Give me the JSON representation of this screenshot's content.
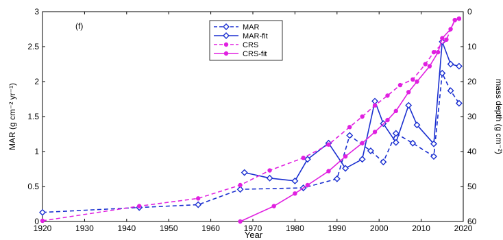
{
  "chart_data": {
    "type": "line",
    "panel_label": "(f)",
    "xlabel": "Year",
    "ylabel_left": "MAR (g cm⁻² yr⁻¹)",
    "ylabel_right": "mass depth (g cm⁻²)",
    "xlim": [
      1920,
      2020
    ],
    "ylim_left": [
      0,
      3
    ],
    "ylim_right": [
      0,
      60
    ],
    "right_axis_inverted": true,
    "x_ticks": [
      "1920",
      "1930",
      "1940",
      "1950",
      "1960",
      "1970",
      "1980",
      "1990",
      "2000",
      "2010",
      "2020"
    ],
    "y_ticks_left": [
      "0",
      "0.5",
      "1",
      "1.5",
      "2",
      "2.5",
      "3"
    ],
    "y_ticks_right": [
      "0",
      "10",
      "20",
      "30",
      "40",
      "50",
      "60"
    ],
    "legend_position": "top-center",
    "series": [
      {
        "name": "MAR",
        "color": "#1a2fd0",
        "line_style": "dashed",
        "marker": "diamond-open",
        "axis": "left",
        "x": [
          1920,
          1943,
          1957,
          1967,
          1982,
          1990,
          1993,
          1998,
          2001,
          2004,
          2008,
          2013,
          2015,
          2017,
          2019
        ],
        "y": [
          0.13,
          0.2,
          0.24,
          0.46,
          0.48,
          0.61,
          1.23,
          1.01,
          0.85,
          1.26,
          1.12,
          0.93,
          2.12,
          1.87,
          1.69
        ]
      },
      {
        "name": "MAR-fit",
        "color": "#1a2fd0",
        "line_style": "solid",
        "marker": "diamond-open",
        "axis": "left",
        "x": [
          1968,
          1974,
          1980,
          1983,
          1988,
          1992,
          1996,
          1999,
          2001,
          2004,
          2007,
          2009,
          2013,
          2015,
          2017,
          2019
        ],
        "y": [
          0.7,
          0.62,
          0.58,
          0.89,
          1.12,
          0.76,
          0.89,
          1.72,
          1.4,
          1.13,
          1.66,
          1.38,
          1.11,
          2.57,
          2.25,
          2.22
        ]
      },
      {
        "name": "CRS",
        "color": "#e020e0",
        "line_style": "dashed",
        "marker": "circle-filled",
        "axis": "left",
        "x": [
          1920,
          1943,
          1957,
          1967,
          1974,
          1982,
          1988,
          1993,
          1996,
          1999,
          2002,
          2005,
          2008,
          2011,
          2013,
          2016,
          2018,
          2019
        ],
        "y": [
          0.01,
          0.22,
          0.33,
          0.52,
          0.73,
          0.91,
          1.1,
          1.35,
          1.5,
          1.66,
          1.8,
          1.95,
          2.03,
          2.25,
          2.42,
          2.6,
          2.88,
          2.9
        ]
      },
      {
        "name": "CRS-fit",
        "color": "#e020e0",
        "line_style": "solid",
        "marker": "circle-filled",
        "axis": "left",
        "x": [
          1967,
          1975,
          1980,
          1983,
          1988,
          1992,
          1996,
          1999,
          2002,
          2004,
          2007,
          2009,
          2012,
          2014,
          2015,
          2017,
          2018,
          2019
        ],
        "y": [
          0.0,
          0.22,
          0.4,
          0.52,
          0.72,
          0.93,
          1.12,
          1.28,
          1.45,
          1.58,
          1.85,
          2.0,
          2.22,
          2.42,
          2.62,
          2.75,
          2.88,
          2.9
        ]
      }
    ]
  }
}
